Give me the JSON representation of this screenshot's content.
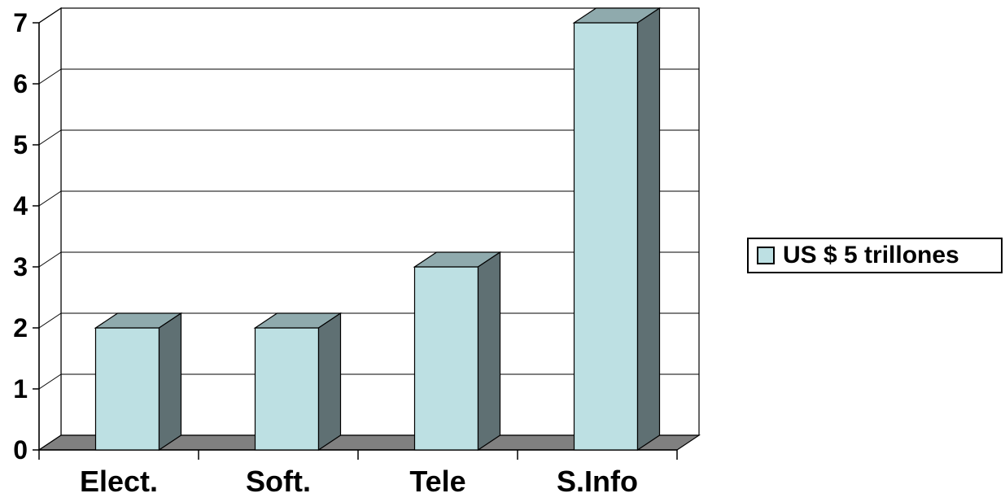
{
  "chart_data": {
    "type": "bar",
    "categories": [
      "Elect.",
      "Soft.",
      "Tele",
      "S.Info"
    ],
    "series": [
      {
        "name": "US $ 5 trillones",
        "values": [
          2,
          2,
          3,
          7
        ]
      }
    ],
    "ylim": [
      0,
      7
    ],
    "yticks": [
      "0",
      "1",
      "2",
      "3",
      "4",
      "5",
      "6",
      "7"
    ],
    "grid": true,
    "legend_position": "right",
    "three_d": true,
    "colors": {
      "bar_front": "#bde0e3",
      "bar_top": "#8faaad",
      "bar_side": "#5f7073",
      "floor": "#808080"
    }
  }
}
